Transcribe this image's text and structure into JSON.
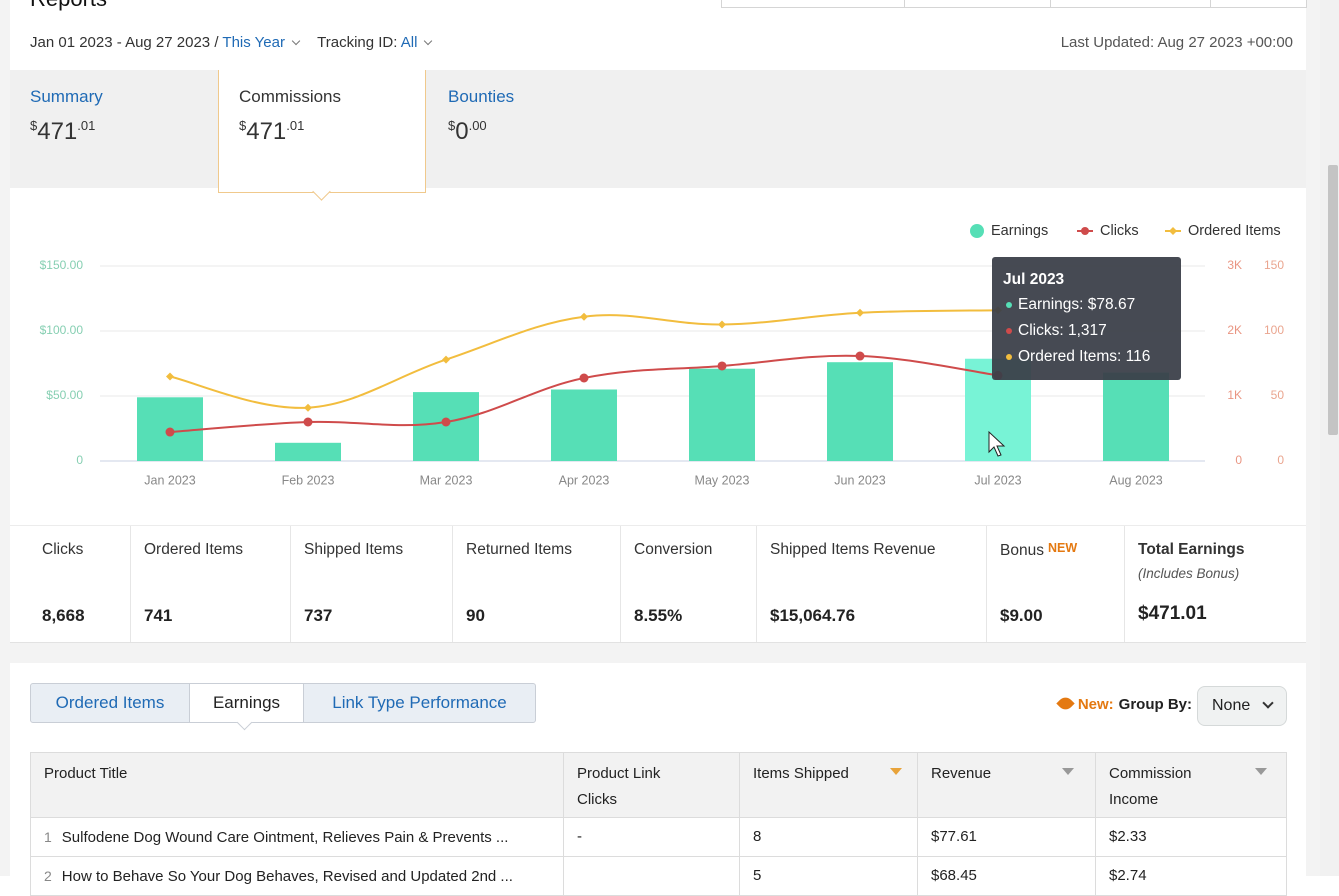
{
  "header": {
    "title": "Reports",
    "date_range": "Jan 01 2023 - Aug 27 2023 /",
    "period": "This Year",
    "tracking_label": "Tracking ID:",
    "tracking_value": "All",
    "last_updated": "Last Updated: Aug 27 2023 +00:00"
  },
  "tabs": [
    {
      "label": "Summary",
      "currency": "$",
      "whole": "471",
      "fraction": ".01"
    },
    {
      "label": "Commissions",
      "currency": "$",
      "whole": "471",
      "fraction": ".01"
    },
    {
      "label": "Bounties",
      "currency": "$",
      "whole": "0",
      "fraction": ".00"
    }
  ],
  "chart_data": {
    "type": "combo",
    "categories": [
      "Jan 2023",
      "Feb 2023",
      "Mar 2023",
      "Apr 2023",
      "May 2023",
      "Jun 2023",
      "Jul 2023",
      "Aug 2023"
    ],
    "series": [
      {
        "name": "Earnings",
        "mark": "bar",
        "axis": "y",
        "color": "#56dfb6",
        "hover_color": "#78f3d6",
        "values": [
          49,
          14,
          53,
          55,
          71,
          76,
          78.67,
          68
        ]
      },
      {
        "name": "Clicks",
        "mark": "line",
        "axis": "y2",
        "color": "#cf4b4b",
        "values": [
          446,
          600,
          600,
          1277,
          1462,
          1615,
          1317,
          null
        ]
      },
      {
        "name": "Ordered Items",
        "mark": "line",
        "axis": "y3",
        "color": "#f2bd3e",
        "values": [
          65,
          41,
          78,
          111,
          105,
          114,
          116,
          null
        ]
      }
    ],
    "ylim": [
      0,
      150
    ],
    "yticks": [
      0,
      {
        "value": 50,
        "label": "$50.00"
      },
      {
        "value": 100,
        "label": "$100.00"
      },
      {
        "value": 150,
        "label": "$150.00"
      }
    ],
    "y2lim": [
      0,
      3000
    ],
    "y2ticks": [
      0,
      {
        "value": 1000,
        "label": "1K"
      },
      {
        "value": 2000,
        "label": "2K"
      },
      {
        "value": 3000,
        "label": "3K"
      }
    ],
    "y3lim": [
      0,
      150
    ],
    "y3ticks": [
      0,
      50,
      100,
      150
    ],
    "grid": true,
    "legend": "top-right",
    "tooltip": {
      "title": "Jul 2023",
      "lines": [
        "Earnings: $78.67",
        "Clicks: 1,317",
        "Ordered Items: 116"
      ]
    }
  },
  "stats": [
    {
      "label": "Clicks",
      "value": "8,668"
    },
    {
      "label": "Ordered Items",
      "value": "741"
    },
    {
      "label": "Shipped Items",
      "value": "737"
    },
    {
      "label": "Returned Items",
      "value": "90"
    },
    {
      "label": "Conversion",
      "value": "8.55%"
    },
    {
      "label": "Shipped Items Revenue",
      "value": "$15,064.76"
    },
    {
      "label": "Bonus",
      "badge": "NEW",
      "value": "$9.00"
    },
    {
      "label": "Total Earnings",
      "note": "(Includes Bonus)",
      "value": "$471.01"
    }
  ],
  "report_tabs": [
    "Ordered Items",
    "Earnings",
    "Link Type Performance"
  ],
  "group_by": {
    "new": "New:",
    "label": "Group By:",
    "value": "None"
  },
  "table": {
    "headers": [
      "Product Title",
      "Product Link Clicks",
      "Items Shipped",
      "Revenue",
      "Commission Income"
    ],
    "rows": [
      {
        "num": "1",
        "cells": [
          "Sulfodene Dog Wound Care Ointment, Relieves Pain & Prevents ...",
          "-",
          "8",
          "$77.61",
          "$2.33"
        ]
      },
      {
        "num": "2",
        "cells": [
          "How to Behave So Your Dog Behaves, Revised and Updated 2nd ...",
          null,
          "5",
          "$68.45",
          "$2.74"
        ]
      }
    ]
  }
}
